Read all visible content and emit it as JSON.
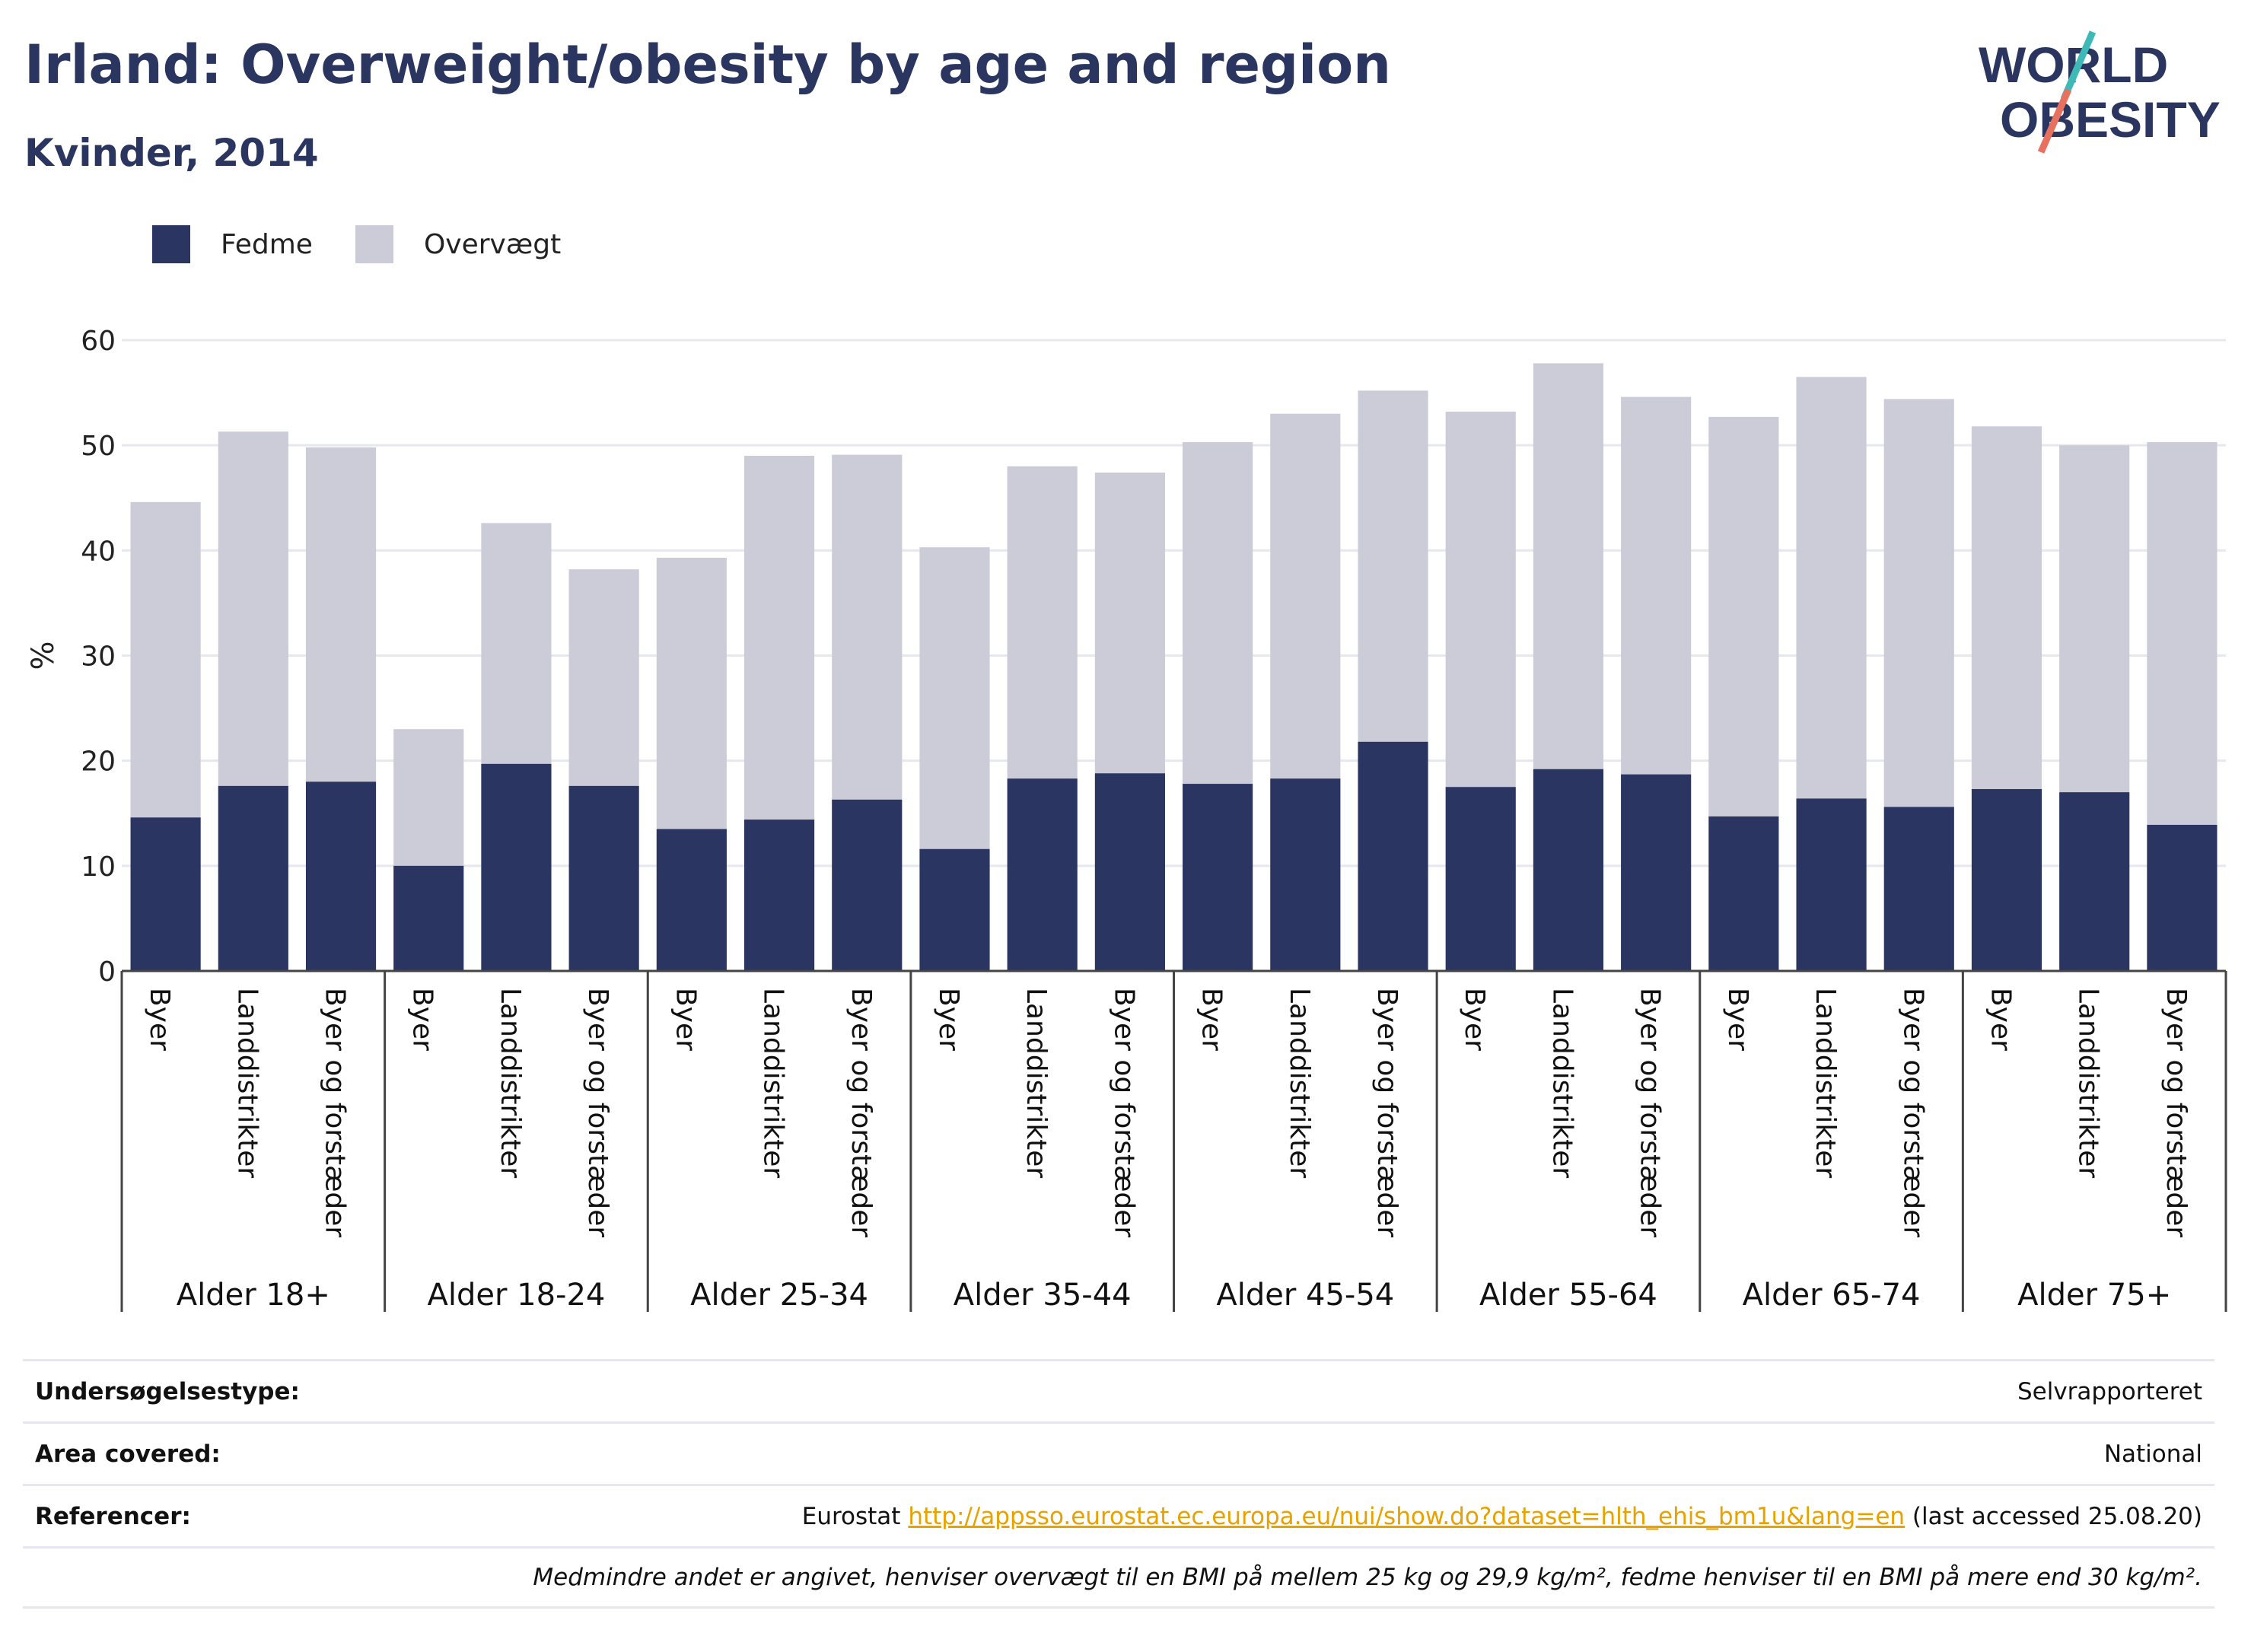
{
  "header": {
    "title": "Irland: Overweight/obesity by age and region",
    "subtitle": "Kvinder, 2014",
    "logo_top": "WORLD",
    "logo_bottom": "OBESITY"
  },
  "colors": {
    "obesity": "#2a3562",
    "overweight": "#cbccd8",
    "title": "#2a3560",
    "logo_teal": "#3dbab8",
    "logo_coral": "#e8705f",
    "link": "#e7a200"
  },
  "legend": [
    {
      "label": "Fedme",
      "color": "#2a3562"
    },
    {
      "label": "Overvægt",
      "color": "#cbccd8"
    }
  ],
  "chart_data": {
    "type": "bar",
    "stacked": true,
    "ylabel": "%",
    "ylim": [
      0,
      60
    ],
    "yticks": [
      0,
      10,
      20,
      30,
      40,
      50,
      60
    ],
    "grid": true,
    "legend_position": "top-left",
    "groups": [
      "Alder 18+",
      "Alder 18-24",
      "Alder 25-34",
      "Alder 35-44",
      "Alder 45-54",
      "Alder 55-64",
      "Alder 65-74",
      "Alder 75+"
    ],
    "subcategories": [
      "Byer",
      "Landdistrikter",
      "Byer og forstæder"
    ],
    "series": [
      {
        "name": "Fedme",
        "values": [
          14.6,
          17.6,
          18.0,
          10.0,
          19.7,
          17.6,
          13.5,
          14.4,
          16.3,
          11.6,
          18.3,
          18.8,
          17.8,
          18.3,
          21.8,
          17.5,
          19.2,
          18.7,
          14.7,
          16.4,
          15.6,
          17.3,
          17.0,
          13.9
        ]
      },
      {
        "name": "Overvægt",
        "values": [
          30.0,
          33.7,
          31.8,
          13.0,
          22.9,
          20.6,
          25.8,
          34.6,
          32.8,
          28.7,
          29.7,
          28.6,
          32.5,
          34.7,
          33.4,
          35.7,
          38.6,
          35.9,
          38.0,
          40.1,
          38.8,
          34.5,
          33.0,
          36.4
        ]
      }
    ]
  },
  "info": {
    "survey_type_label": "Undersøgelsestype:",
    "survey_type_value": "Selvrapporteret",
    "area_label": "Area covered:",
    "area_value": "National",
    "references_label": "Referencer:",
    "references_prefix": "Eurostat",
    "references_link": "http://appsso.eurostat.ec.europa.eu/nui/show.do?dataset=hlth_ehis_bm1u&lang=en",
    "references_suffix": "(last accessed 25.08.20)",
    "note": "Medmindre andet er angivet, henviser overvægt til en BMI på mellem 25 kg og 29,9 kg/m², fedme henviser til en BMI på mere end 30 kg/m²."
  }
}
